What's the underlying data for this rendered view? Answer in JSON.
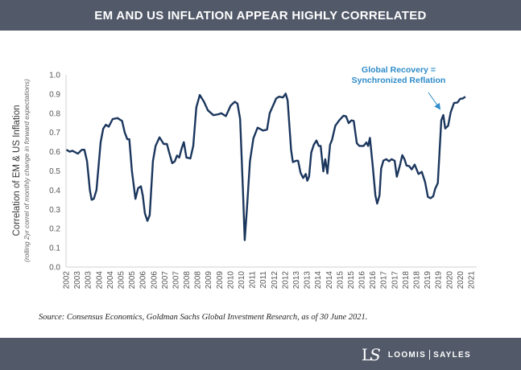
{
  "header": {
    "title": "EM AND US INFLATION APPEAR HIGHLY CORRELATED"
  },
  "source": "Source: Consensus Economics, Goldman Sachs Global Investment Research, as of 30 June 2021.",
  "logo": {
    "mark": "LS",
    "name_left": "LOOMIS",
    "name_right": "SAYLES"
  },
  "colors": {
    "header": "#525969",
    "line": "#1b365d",
    "annotation": "#2e8bc9"
  },
  "chart_data": {
    "type": "line",
    "title": "",
    "ylabel": "Correlation of EM & US Inflation",
    "ylabel_sub": "(rolling 2yr correl of monthly change in forward expectations)",
    "xlabel": "",
    "ylim": [
      0,
      1.0
    ],
    "yticks": [
      "0.0",
      "0.1",
      "0.2",
      "0.3",
      "0.4",
      "0.5",
      "0.6",
      "0.7",
      "0.8",
      "0.9",
      "1.0"
    ],
    "xtick_start": 2002.92,
    "xtick_step_years": 0.5,
    "xticks": [
      "2002",
      "2003",
      "2003",
      "2004",
      "2004",
      "2005",
      "2005",
      "2006",
      "2006",
      "2007",
      "2007",
      "2008",
      "2008",
      "2009",
      "2009",
      "2010",
      "2010",
      "2011",
      "2011",
      "2012",
      "2012",
      "2013",
      "2013",
      "2014",
      "2014",
      "2015",
      "2015",
      "2016",
      "2016",
      "2017",
      "2017",
      "2018",
      "2018",
      "2019",
      "2019",
      "2020",
      "2020",
      "2021"
    ],
    "grid": false,
    "annotation": {
      "line1": "Global Recovery =",
      "line2": "Synchronized Reflation",
      "x": 2020.1,
      "y": 0.79
    },
    "series": [
      {
        "x": [
          2002.94,
          2003.09,
          2003.21,
          2003.46,
          2003.64,
          2003.76,
          2003.88,
          2004.01,
          2004.09,
          2004.19,
          2004.31,
          2004.5,
          2004.62,
          2004.74,
          2004.87,
          2005.05,
          2005.27,
          2005.48,
          2005.6,
          2005.72,
          2005.81,
          2005.93,
          2006.09,
          2006.21,
          2006.34,
          2006.43,
          2006.52,
          2006.64,
          2006.74,
          2006.89,
          2007.01,
          2007.19,
          2007.38,
          2007.53,
          2007.62,
          2007.77,
          2007.89,
          2007.99,
          2008.09,
          2008.21,
          2008.3,
          2008.42,
          2008.6,
          2008.73,
          2008.87,
          2009.03,
          2009.22,
          2009.4,
          2009.65,
          2009.89,
          2010.01,
          2010.22,
          2010.44,
          2010.63,
          2010.75,
          2010.87,
          2011.0,
          2011.08,
          2011.18,
          2011.32,
          2011.48,
          2011.67,
          2011.92,
          2012.1,
          2012.22,
          2012.4,
          2012.52,
          2012.65,
          2012.83,
          2012.95,
          2013.04,
          2013.2,
          2013.28,
          2013.44,
          2013.52,
          2013.63,
          2013.75,
          2013.87,
          2013.94,
          2014.02,
          2014.12,
          2014.24,
          2014.36,
          2014.46,
          2014.55,
          2014.67,
          2014.76,
          2014.86,
          2014.98,
          2015.07,
          2015.22,
          2015.4,
          2015.59,
          2015.71,
          2015.83,
          2015.96,
          2016.06,
          2016.2,
          2016.32,
          2016.51,
          2016.64,
          2016.72,
          2016.8,
          2016.93,
          2017.05,
          2017.13,
          2017.24,
          2017.31,
          2017.42,
          2017.55,
          2017.67,
          2017.79,
          2017.93,
          2018.03,
          2018.16,
          2018.28,
          2018.38,
          2018.47,
          2018.59,
          2018.71,
          2018.84,
          2019.02,
          2019.17,
          2019.32,
          2019.45,
          2019.57,
          2019.69,
          2019.78,
          2019.9,
          2020.06,
          2020.15,
          2020.24,
          2020.37,
          2020.49,
          2020.64,
          2020.8,
          2020.92,
          2021.04,
          2021.16
        ],
        "values": [
          0.61,
          0.6,
          0.605,
          0.59,
          0.61,
          0.61,
          0.55,
          0.4,
          0.35,
          0.355,
          0.4,
          0.65,
          0.72,
          0.74,
          0.73,
          0.77,
          0.775,
          0.76,
          0.7,
          0.665,
          0.665,
          0.5,
          0.355,
          0.41,
          0.42,
          0.37,
          0.28,
          0.24,
          0.27,
          0.55,
          0.63,
          0.675,
          0.64,
          0.64,
          0.6,
          0.54,
          0.55,
          0.58,
          0.57,
          0.62,
          0.65,
          0.57,
          0.565,
          0.63,
          0.83,
          0.895,
          0.86,
          0.815,
          0.79,
          0.795,
          0.8,
          0.785,
          0.84,
          0.86,
          0.85,
          0.77,
          0.4,
          0.14,
          0.3,
          0.55,
          0.67,
          0.725,
          0.71,
          0.715,
          0.8,
          0.846,
          0.877,
          0.886,
          0.882,
          0.902,
          0.867,
          0.609,
          0.546,
          0.553,
          0.553,
          0.491,
          0.463,
          0.484,
          0.449,
          0.47,
          0.595,
          0.637,
          0.658,
          0.63,
          0.63,
          0.498,
          0.561,
          0.487,
          0.637,
          0.661,
          0.735,
          0.763,
          0.787,
          0.784,
          0.749,
          0.763,
          0.76,
          0.644,
          0.63,
          0.63,
          0.648,
          0.63,
          0.672,
          0.525,
          0.372,
          0.33,
          0.372,
          0.512,
          0.554,
          0.561,
          0.55,
          0.561,
          0.553,
          0.47,
          0.525,
          0.582,
          0.561,
          0.528,
          0.525,
          0.508,
          0.533,
          0.484,
          0.495,
          0.442,
          0.365,
          0.358,
          0.368,
          0.407,
          0.437,
          0.763,
          0.791,
          0.721,
          0.735,
          0.805,
          0.853,
          0.856,
          0.875,
          0.877,
          0.886
        ]
      }
    ]
  }
}
